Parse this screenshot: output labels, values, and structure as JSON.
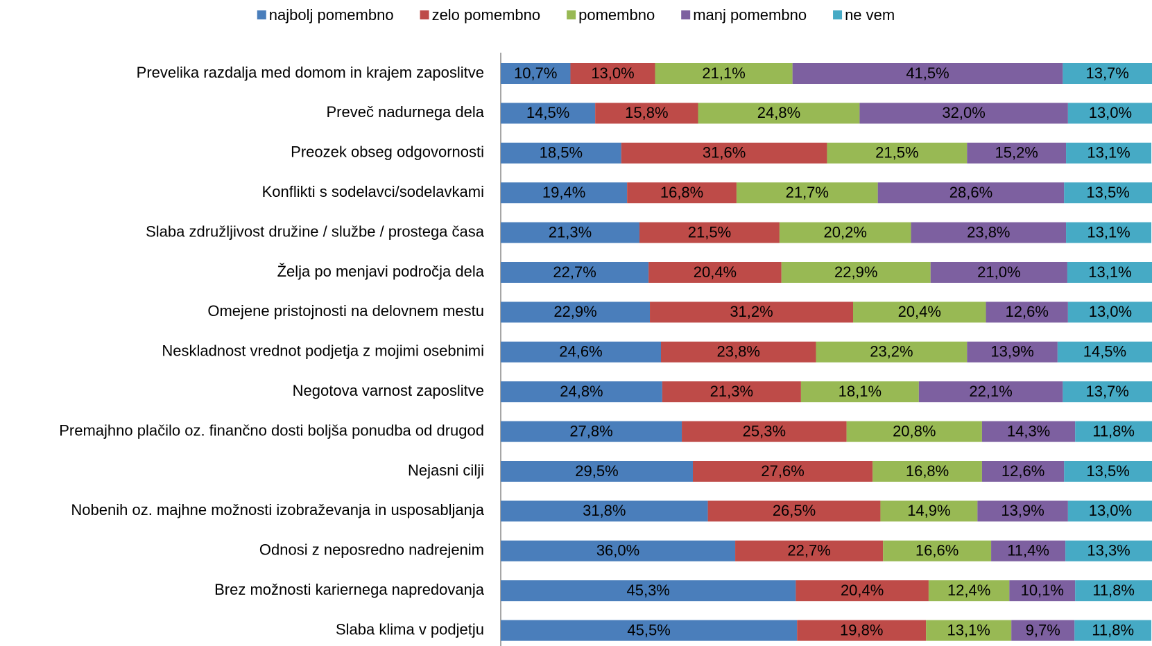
{
  "chart_data": {
    "type": "stacked-barh",
    "categories": [
      "Prevelika razdalja med domom in krajem zaposlitve",
      "Preveč nadurnega dela",
      "Preozek obseg odgovornosti",
      "Konflikti s sodelavci/sodelavkami",
      "Slaba združljivost družine / službe / prostega časa",
      "Želja po menjavi področja dela",
      "Omejene pristojnosti na delovnem mestu",
      "Neskladnost vrednot podjetja z mojimi osebnimi",
      "Negotova varnost zaposlitve",
      "Premajhno plačilo oz. finančno dosti boljša ponudba od drugod",
      "Nejasni cilji",
      "Nobenih oz. majhne možnosti izobraževanja in usposabljanja",
      "Odnosi z neposredno nadrejenim",
      "Brez možnosti kariernega napredovanja",
      "Slaba klima v podjetju"
    ],
    "series": [
      {
        "name": "najbolj pomembno",
        "color": "#4a7ebb",
        "values": [
          10.7,
          14.5,
          18.5,
          19.4,
          21.3,
          22.7,
          22.9,
          24.6,
          24.8,
          27.8,
          29.5,
          31.8,
          36.0,
          45.3,
          45.5
        ],
        "value_labels": [
          "10,7%",
          "14,5%",
          "18,5%",
          "19,4%",
          "21,3%",
          "22,7%",
          "22,9%",
          "24,6%",
          "24,8%",
          "27,8%",
          "29,5%",
          "31,8%",
          "36,0%",
          "45,3%",
          "45,5%"
        ]
      },
      {
        "name": "zelo pomembno",
        "color": "#be4b48",
        "values": [
          13.0,
          15.8,
          31.6,
          16.8,
          21.5,
          20.4,
          31.2,
          23.8,
          21.3,
          25.3,
          27.6,
          26.5,
          22.7,
          20.4,
          19.8
        ],
        "value_labels": [
          "13,0%",
          "15,8%",
          "31,6%",
          "16,8%",
          "21,5%",
          "20,4%",
          "31,2%",
          "23,8%",
          "21,3%",
          "25,3%",
          "27,6%",
          "26,5%",
          "22,7%",
          "20,4%",
          "19,8%"
        ]
      },
      {
        "name": "pomembno",
        "color": "#98b954",
        "values": [
          21.1,
          24.8,
          21.5,
          21.7,
          20.2,
          22.9,
          20.4,
          23.2,
          18.1,
          20.8,
          16.8,
          14.9,
          16.6,
          12.4,
          13.1
        ],
        "value_labels": [
          "21,1%",
          "24,8%",
          "21,5%",
          "21,7%",
          "20,2%",
          "22,9%",
          "20,4%",
          "23,2%",
          "18,1%",
          "20,8%",
          "16,8%",
          "14,9%",
          "16,6%",
          "12,4%",
          "13,1%"
        ]
      },
      {
        "name": "manj pomembno",
        "color": "#7d60a0",
        "values": [
          41.5,
          32.0,
          15.2,
          28.6,
          23.8,
          21.0,
          12.6,
          13.9,
          22.1,
          14.3,
          12.6,
          13.9,
          11.4,
          10.1,
          9.7
        ],
        "value_labels": [
          "41,5%",
          "32,0%",
          "15,2%",
          "28,6%",
          "23,8%",
          "21,0%",
          "12,6%",
          "13,9%",
          "22,1%",
          "14,3%",
          "12,6%",
          "13,9%",
          "11,4%",
          "10,1%",
          "9,7%"
        ]
      },
      {
        "name": "ne vem",
        "color": "#46aac5",
        "values": [
          13.7,
          13.0,
          13.1,
          13.5,
          13.1,
          13.1,
          13.0,
          14.5,
          13.7,
          11.8,
          13.5,
          13.0,
          13.3,
          11.8,
          11.8
        ],
        "value_labels": [
          "13,7%",
          "13,0%",
          "13,1%",
          "13,5%",
          "13,1%",
          "13,1%",
          "13,0%",
          "14,5%",
          "13,7%",
          "11,8%",
          "13,5%",
          "13,0%",
          "13,3%",
          "11,8%",
          "11,8%"
        ]
      }
    ],
    "xlim": [
      0,
      100
    ],
    "legend": "top"
  }
}
